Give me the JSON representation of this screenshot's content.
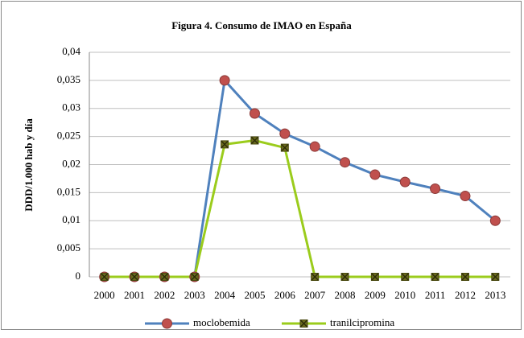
{
  "chart_data": {
    "type": "line",
    "title": "Figura 4. Consumo de IMAO en España",
    "ylabel": "DDD/1.000 hab y día",
    "categories": [
      "2000",
      "2001",
      "2002",
      "2003",
      "2004",
      "2005",
      "2006",
      "2007",
      "2008",
      "2009",
      "2010",
      "2011",
      "2012",
      "2013"
    ],
    "series": [
      {
        "name": "moclobemida",
        "color": "#4f81bd",
        "marker_color": "#c0504d",
        "values": [
          0,
          0,
          0,
          0,
          0.035,
          0.0291,
          0.0255,
          0.0232,
          0.0204,
          0.0182,
          0.0169,
          0.0157,
          0.0144,
          0.01
        ]
      },
      {
        "name": "tranilcipromina",
        "color": "#9bcc1c",
        "marker_color": "#6b6b1e",
        "values": [
          0,
          0,
          0,
          0,
          0.0236,
          0.0243,
          0.023,
          0,
          0,
          0,
          0,
          0,
          0,
          0
        ]
      }
    ],
    "ylim": [
      0,
      0.04
    ],
    "yticks": [
      0,
      {
        "value": 0.005,
        "label": "0,005"
      },
      {
        "value": 0.01,
        "label": "0,01"
      },
      {
        "value": 0.015,
        "label": "0,015"
      },
      {
        "value": 0.02,
        "label": "0,02"
      },
      {
        "value": 0.025,
        "label": "0,025"
      },
      {
        "value": 0.03,
        "label": "0,03"
      },
      {
        "value": 0.035,
        "label": "0,035"
      },
      {
        "value": 0.04,
        "label": "0,04"
      }
    ],
    "grid": true,
    "legend": "bottom"
  }
}
